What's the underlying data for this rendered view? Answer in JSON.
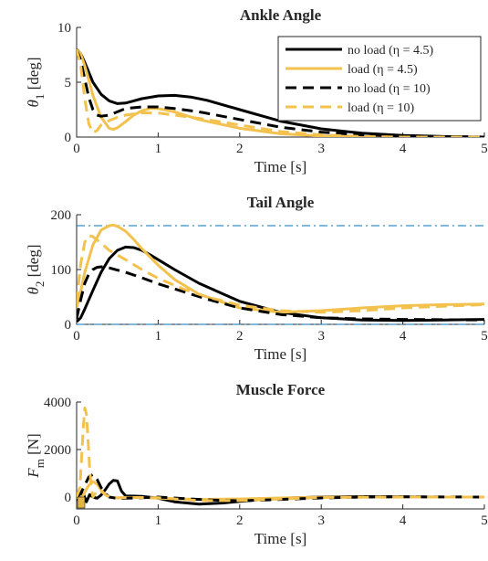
{
  "chart_data": [
    {
      "type": "line",
      "title": "Ankle Angle",
      "xlabel": "Time [s]",
      "ylabel": "θ1 [deg]",
      "ylabel_main": "θ",
      "ylabel_sub": "1",
      "ylabel_unit": " [deg]",
      "xlim": [
        0,
        5
      ],
      "ylim": [
        0,
        10
      ],
      "xticks": [
        "0",
        "1",
        "2",
        "3",
        "4",
        "5"
      ],
      "yticks": [
        "0",
        "5",
        "10"
      ],
      "legend_position": "top-right",
      "series": [
        {
          "name": "no load (η = 4.5)",
          "color": "#000000",
          "dash": "solid",
          "x": [
            0,
            0.05,
            0.1,
            0.15,
            0.2,
            0.3,
            0.4,
            0.5,
            0.6,
            0.7,
            0.8,
            1.0,
            1.2,
            1.4,
            1.6,
            2.0,
            2.5,
            3.0,
            3.5,
            4.0,
            4.5,
            5.0
          ],
          "y": [
            8.0,
            7.6,
            6.8,
            5.9,
            5.0,
            3.9,
            3.3,
            3.05,
            3.1,
            3.3,
            3.5,
            3.75,
            3.8,
            3.65,
            3.35,
            2.5,
            1.45,
            0.75,
            0.35,
            0.15,
            0.05,
            0.0
          ]
        },
        {
          "name": "load (η = 4.5)",
          "color": "#f2c14e",
          "dash": "solid",
          "x": [
            0,
            0.05,
            0.1,
            0.15,
            0.2,
            0.3,
            0.4,
            0.45,
            0.5,
            0.6,
            0.7,
            0.8,
            0.9,
            1.0,
            1.2,
            1.5,
            2.0,
            2.5,
            3.0,
            3.5,
            4.0,
            5.0
          ],
          "y": [
            8.0,
            7.6,
            6.5,
            5.2,
            3.8,
            1.8,
            0.8,
            0.7,
            0.85,
            1.4,
            2.0,
            2.4,
            2.6,
            2.6,
            2.3,
            1.6,
            0.8,
            0.3,
            0.1,
            0.03,
            0.0,
            0.0
          ]
        },
        {
          "name": "no load (η = 10)",
          "color": "#000000",
          "dash": "dashed",
          "x": [
            0,
            0.05,
            0.1,
            0.15,
            0.2,
            0.25,
            0.3,
            0.4,
            0.5,
            0.6,
            0.8,
            1.0,
            1.2,
            1.5,
            2.0,
            2.5,
            3.0,
            3.5,
            4.0,
            5.0
          ],
          "y": [
            8.0,
            7.0,
            5.3,
            3.6,
            2.5,
            2.0,
            1.9,
            2.0,
            2.3,
            2.6,
            2.75,
            2.75,
            2.6,
            2.3,
            1.6,
            0.9,
            0.45,
            0.2,
            0.08,
            0.0
          ]
        },
        {
          "name": "load (η = 10)",
          "color": "#f2c14e",
          "dash": "dashed",
          "x": [
            0,
            0.05,
            0.1,
            0.15,
            0.2,
            0.25,
            0.3,
            0.4,
            0.5,
            0.6,
            0.8,
            1.0,
            1.2,
            1.5,
            2.0,
            2.5,
            3.0,
            3.5,
            4.0,
            5.0
          ],
          "y": [
            8.0,
            6.5,
            3.5,
            1.2,
            0.4,
            0.6,
            1.1,
            1.5,
            1.8,
            2.0,
            2.2,
            2.2,
            2.0,
            1.7,
            1.1,
            0.5,
            0.2,
            0.05,
            0.0,
            0.0
          ]
        }
      ]
    },
    {
      "type": "line",
      "title": "Tail Angle",
      "xlabel": "Time [s]",
      "ylabel": "θ2 [deg]",
      "ylabel_main": "θ",
      "ylabel_sub": "2",
      "ylabel_unit": " [deg]",
      "xlim": [
        0,
        5
      ],
      "ylim": [
        0,
        200
      ],
      "xticks": [
        "0",
        "1",
        "2",
        "3",
        "4",
        "5"
      ],
      "yticks": [
        "0",
        "100",
        "200"
      ],
      "reference_lines": [
        {
          "y": 180,
          "color": "#0072bd",
          "dash": "dashdot"
        },
        {
          "y": 0,
          "color": "#0072bd",
          "dash": "dashdot"
        }
      ],
      "series": [
        {
          "name": "no load (η = 4.5)",
          "color": "#000000",
          "dash": "solid",
          "x": [
            0,
            0.05,
            0.1,
            0.2,
            0.3,
            0.4,
            0.5,
            0.6,
            0.7,
            0.8,
            0.9,
            1.0,
            1.2,
            1.5,
            2.0,
            2.5,
            3.0,
            3.5,
            4.0,
            4.5,
            5.0
          ],
          "y": [
            5,
            12,
            28,
            62,
            95,
            120,
            135,
            141,
            140,
            135,
            127,
            118,
            100,
            75,
            42,
            22,
            12,
            8,
            7,
            8,
            9
          ]
        },
        {
          "name": "load (η = 4.5)",
          "color": "#f2c14e",
          "dash": "solid",
          "x": [
            0,
            0.05,
            0.1,
            0.2,
            0.3,
            0.4,
            0.45,
            0.5,
            0.6,
            0.7,
            0.8,
            1.0,
            1.2,
            1.5,
            2.0,
            2.5,
            3.0,
            3.5,
            4.0,
            4.5,
            5.0
          ],
          "y": [
            30,
            60,
            95,
            145,
            172,
            180,
            181,
            179,
            170,
            155,
            138,
            108,
            82,
            55,
            30,
            22,
            25,
            30,
            34,
            36,
            37
          ]
        },
        {
          "name": "no load (η = 10)",
          "color": "#000000",
          "dash": "dashed",
          "x": [
            0,
            0.05,
            0.1,
            0.15,
            0.2,
            0.25,
            0.3,
            0.4,
            0.6,
            0.8,
            1.0,
            1.3,
            1.6,
            2.0,
            2.5,
            3.0,
            3.5,
            4.0,
            5.0
          ],
          "y": [
            10,
            45,
            75,
            92,
            100,
            104,
            105,
            103,
            95,
            85,
            74,
            60,
            46,
            30,
            18,
            12,
            10,
            9,
            8
          ]
        },
        {
          "name": "load (η = 10)",
          "color": "#f2c14e",
          "dash": "dashed",
          "x": [
            0,
            0.05,
            0.1,
            0.15,
            0.2,
            0.3,
            0.4,
            0.6,
            0.8,
            1.0,
            1.3,
            1.6,
            2.0,
            2.5,
            3.0,
            3.5,
            4.0,
            5.0
          ],
          "y": [
            40,
            110,
            150,
            162,
            160,
            148,
            135,
            118,
            100,
            84,
            65,
            50,
            35,
            25,
            22,
            25,
            30,
            36
          ]
        }
      ]
    },
    {
      "type": "line",
      "title": "Muscle Force",
      "xlabel": "Time [s]",
      "ylabel": "Fm [N]",
      "ylabel_main": "F",
      "ylabel_sub": "m",
      "ylabel_unit": " [N]",
      "xlim": [
        0,
        5
      ],
      "ylim": [
        -500,
        4000
      ],
      "xticks": [
        "0",
        "1",
        "2",
        "3",
        "4",
        "5"
      ],
      "yticks": [
        "0",
        "2000",
        "4000"
      ],
      "series": [
        {
          "name": "no load (η = 4.5)",
          "color": "#000000",
          "dash": "solid",
          "x": [
            0,
            0.04,
            0.08,
            0.12,
            0.16,
            0.2,
            0.25,
            0.3,
            0.35,
            0.4,
            0.45,
            0.5,
            0.55,
            0.6,
            0.8,
            1.0,
            1.2,
            1.5,
            1.8,
            2.2,
            2.6,
            3.0,
            3.5,
            4.0,
            4.5,
            5.0
          ],
          "y": [
            0,
            -250,
            150,
            -200,
            100,
            0,
            -50,
            80,
            300,
            550,
            700,
            680,
            250,
            50,
            30,
            -50,
            -200,
            -300,
            -250,
            -120,
            -40,
            0,
            20,
            10,
            0,
            0
          ]
        },
        {
          "name": "load (η = 4.5)",
          "color": "#f2c14e",
          "dash": "solid",
          "x": [
            0,
            0.05,
            0.1,
            0.15,
            0.2,
            0.25,
            0.3,
            0.35,
            0.4,
            0.5,
            0.6,
            0.8,
            1.0,
            1.5,
            2.0,
            2.5,
            3.0,
            3.5,
            4.0,
            5.0
          ],
          "y": [
            0,
            -100,
            200,
            500,
            650,
            550,
            300,
            100,
            0,
            -40,
            -30,
            -20,
            -50,
            -100,
            -80,
            -40,
            -10,
            0,
            0,
            0
          ]
        },
        {
          "name": "no load (η = 10)",
          "color": "#000000",
          "dash": "dashed",
          "x": [
            0,
            0.05,
            0.1,
            0.15,
            0.2,
            0.25,
            0.3,
            0.35,
            0.4,
            0.5,
            0.7,
            1.0,
            1.3,
            1.6,
            2.0,
            2.5,
            3.0,
            3.5,
            4.0,
            5.0
          ],
          "y": [
            0,
            150,
            500,
            850,
            950,
            750,
            400,
            150,
            0,
            -60,
            -40,
            0,
            -60,
            -120,
            -160,
            -100,
            -40,
            0,
            10,
            0
          ]
        },
        {
          "name": "load (η = 10)",
          "color": "#f2c14e",
          "dash": "dashed",
          "x": [
            0,
            0.04,
            0.08,
            0.1,
            0.12,
            0.14,
            0.16,
            0.18,
            0.2,
            0.22,
            0.25,
            0.3,
            0.35,
            0.4,
            0.5,
            0.7,
            1.0,
            1.5,
            2.0,
            2.5,
            3.0,
            4.0,
            5.0
          ],
          "y": [
            0,
            400,
            2800,
            3750,
            3500,
            2400,
            1200,
            400,
            0,
            100,
            300,
            250,
            100,
            0,
            -30,
            -20,
            -30,
            -150,
            -150,
            -80,
            -20,
            0,
            0
          ]
        }
      ]
    }
  ]
}
